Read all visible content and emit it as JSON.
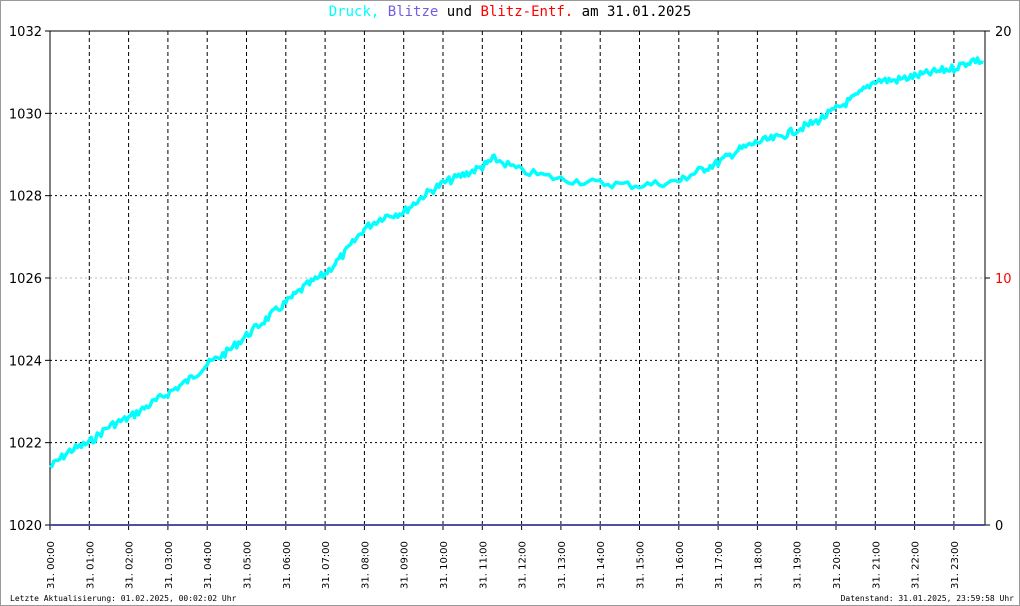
{
  "chart_data": {
    "type": "line",
    "title_parts": [
      {
        "text": "Druck,",
        "color": "#00ffff"
      },
      {
        "text": "Blitze",
        "color": "#7060e0"
      },
      {
        "text": "und",
        "color": "#000000"
      },
      {
        "text": "Blitz-Entf.",
        "color": "#ff0000"
      },
      {
        "text": "am 31.01.2025",
        "color": "#000000"
      }
    ],
    "ylim": [
      1020,
      1032
    ],
    "y_ticks": [
      "1020",
      "1022",
      "1024",
      "1026",
      "1028",
      "1030",
      "1032"
    ],
    "y2lim": [
      0,
      20
    ],
    "y2_ticks": [
      {
        "value": 0,
        "label": "0",
        "color": "#000000"
      },
      {
        "value": 10,
        "label": "10",
        "color": "#ff0000"
      },
      {
        "value": 20,
        "label": "20",
        "color": "#000000"
      }
    ],
    "x_ticks": [
      "31. 00:00",
      "31. 01:00",
      "31. 02:00",
      "31. 03:00",
      "31. 04:00",
      "31. 05:00",
      "31. 06:00",
      "31. 07:00",
      "31. 08:00",
      "31. 09:00",
      "31. 10:00",
      "31. 11:00",
      "31. 12:00",
      "31. 13:00",
      "31. 14:00",
      "31. 15:00",
      "31. 16:00",
      "31. 17:00",
      "31. 18:00",
      "31. 19:00",
      "31. 20:00",
      "31. 21:00",
      "31. 22:00",
      "31. 23:00"
    ],
    "grid": true,
    "series": [
      {
        "name": "Druck",
        "color": "#00ffff",
        "x_hours": [
          0,
          0.5,
          1,
          1.5,
          2,
          2.5,
          3,
          3.5,
          4,
          4.5,
          5,
          5.5,
          6,
          6.5,
          7,
          7.5,
          8,
          8.5,
          9,
          9.5,
          10,
          10.5,
          11,
          11.3,
          12,
          13,
          14,
          15,
          16,
          16.5,
          17,
          17.5,
          18,
          18.5,
          19,
          19.5,
          20,
          20.5,
          21,
          21.5,
          22,
          22.5,
          23,
          23.5,
          24
        ],
        "values": [
          1021.4,
          1021.8,
          1022.0,
          1022.4,
          1022.6,
          1022.9,
          1023.2,
          1023.5,
          1023.9,
          1024.2,
          1024.6,
          1025.0,
          1025.4,
          1025.8,
          1026.1,
          1026.6,
          1027.2,
          1027.5,
          1027.6,
          1028.0,
          1028.3,
          1028.5,
          1028.7,
          1028.9,
          1028.6,
          1028.4,
          1028.3,
          1028.25,
          1028.35,
          1028.6,
          1028.8,
          1029.1,
          1029.3,
          1029.4,
          1029.6,
          1029.8,
          1030.1,
          1030.4,
          1030.8,
          1030.8,
          1030.9,
          1031.0,
          1031.1,
          1031.3,
          1031.2
        ]
      }
    ]
  },
  "footer": {
    "left": "Letzte Aktualisierung: 01.02.2025, 00:02:02 Uhr",
    "right": "Datenstand: 31.01.2025, 23:59:58 Uhr"
  }
}
